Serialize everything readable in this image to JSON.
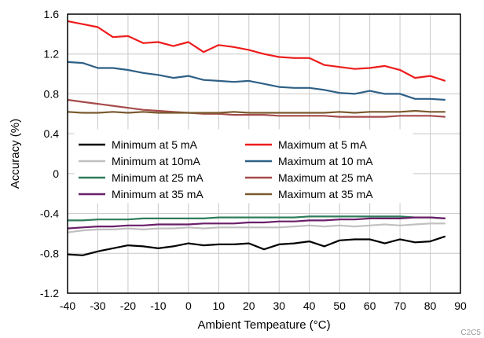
{
  "chart_data": {
    "type": "line",
    "xlabel": "Ambient Tempeature (°C)",
    "ylabel": "Accuracy (%)",
    "xlim": [
      -40,
      90
    ],
    "ylim": [
      -1.2,
      1.6
    ],
    "xticks": [
      -40,
      -30,
      -20,
      -10,
      0,
      10,
      20,
      30,
      40,
      50,
      60,
      70,
      80,
      90
    ],
    "yticks": [
      -1.2,
      -0.8,
      -0.4,
      0,
      0.4,
      0.8,
      1.2,
      1.6
    ],
    "ytick_labels": [
      "-1.2",
      "-0.8",
      "-0.4",
      "0",
      "0.4",
      "0.8",
      "1.2",
      "1.6"
    ],
    "grid": true,
    "legend_position": "center-left",
    "x": [
      -40,
      -35,
      -30,
      -25,
      -20,
      -15,
      -10,
      -5,
      0,
      5,
      10,
      15,
      20,
      25,
      30,
      35,
      40,
      45,
      50,
      55,
      60,
      65,
      70,
      75,
      80,
      85
    ],
    "series": [
      {
        "name": "Minimum at 5 mA",
        "color": "#000000",
        "values": [
          -0.81,
          -0.82,
          -0.78,
          -0.75,
          -0.72,
          -0.73,
          -0.75,
          -0.73,
          -0.7,
          -0.72,
          -0.71,
          -0.71,
          -0.7,
          -0.76,
          -0.71,
          -0.7,
          -0.68,
          -0.73,
          -0.67,
          -0.66,
          -0.66,
          -0.7,
          -0.66,
          -0.69,
          -0.68,
          -0.63
        ]
      },
      {
        "name": "Maximum at 5 mA",
        "color": "#ee1c1c",
        "values": [
          1.53,
          1.5,
          1.47,
          1.37,
          1.38,
          1.31,
          1.32,
          1.28,
          1.32,
          1.22,
          1.29,
          1.27,
          1.24,
          1.2,
          1.17,
          1.16,
          1.16,
          1.09,
          1.07,
          1.05,
          1.06,
          1.08,
          1.04,
          0.96,
          0.98,
          0.93
        ]
      },
      {
        "name": "Minimum at 10mA",
        "color": "#c0c0c0",
        "values": [
          -0.59,
          -0.57,
          -0.56,
          -0.56,
          -0.55,
          -0.56,
          -0.55,
          -0.55,
          -0.54,
          -0.55,
          -0.54,
          -0.54,
          -0.54,
          -0.54,
          -0.54,
          -0.53,
          -0.52,
          -0.53,
          -0.52,
          -0.53,
          -0.52,
          -0.51,
          -0.52,
          -0.51,
          -0.5,
          -0.5
        ]
      },
      {
        "name": "Maximum at 10 mA",
        "color": "#2e6086",
        "values": [
          1.12,
          1.11,
          1.06,
          1.06,
          1.04,
          1.01,
          0.99,
          0.96,
          0.98,
          0.94,
          0.93,
          0.92,
          0.93,
          0.9,
          0.87,
          0.86,
          0.86,
          0.84,
          0.81,
          0.8,
          0.83,
          0.8,
          0.8,
          0.75,
          0.75,
          0.74
        ]
      },
      {
        "name": "Minimum at 25 mA",
        "color": "#2e7d5b",
        "values": [
          -0.47,
          -0.47,
          -0.46,
          -0.46,
          -0.46,
          -0.45,
          -0.45,
          -0.45,
          -0.45,
          -0.45,
          -0.44,
          -0.44,
          -0.44,
          -0.44,
          -0.44,
          -0.44,
          -0.43,
          -0.43,
          -0.43,
          -0.43,
          -0.43,
          -0.43,
          -0.43,
          -0.44,
          -0.44,
          -0.45
        ]
      },
      {
        "name": "Maximum at 25 mA",
        "color": "#a64b4b",
        "values": [
          0.74,
          0.72,
          0.7,
          0.68,
          0.66,
          0.64,
          0.63,
          0.62,
          0.61,
          0.6,
          0.6,
          0.59,
          0.59,
          0.59,
          0.58,
          0.58,
          0.58,
          0.58,
          0.57,
          0.57,
          0.57,
          0.57,
          0.58,
          0.58,
          0.58,
          0.57
        ]
      },
      {
        "name": "Minimum at 35 mA",
        "color": "#6a1f6a",
        "values": [
          -0.55,
          -0.54,
          -0.53,
          -0.53,
          -0.52,
          -0.52,
          -0.51,
          -0.51,
          -0.51,
          -0.5,
          -0.5,
          -0.5,
          -0.49,
          -0.49,
          -0.48,
          -0.48,
          -0.47,
          -0.47,
          -0.46,
          -0.46,
          -0.45,
          -0.45,
          -0.45,
          -0.44,
          -0.44,
          -0.45
        ]
      },
      {
        "name": "Maximum at 35 mA",
        "color": "#7a5a2e",
        "values": [
          0.62,
          0.61,
          0.61,
          0.62,
          0.61,
          0.62,
          0.61,
          0.61,
          0.61,
          0.61,
          0.61,
          0.62,
          0.61,
          0.61,
          0.61,
          0.61,
          0.61,
          0.61,
          0.62,
          0.61,
          0.62,
          0.62,
          0.62,
          0.63,
          0.62,
          0.62
        ]
      }
    ]
  },
  "figure_code": "C2C5"
}
